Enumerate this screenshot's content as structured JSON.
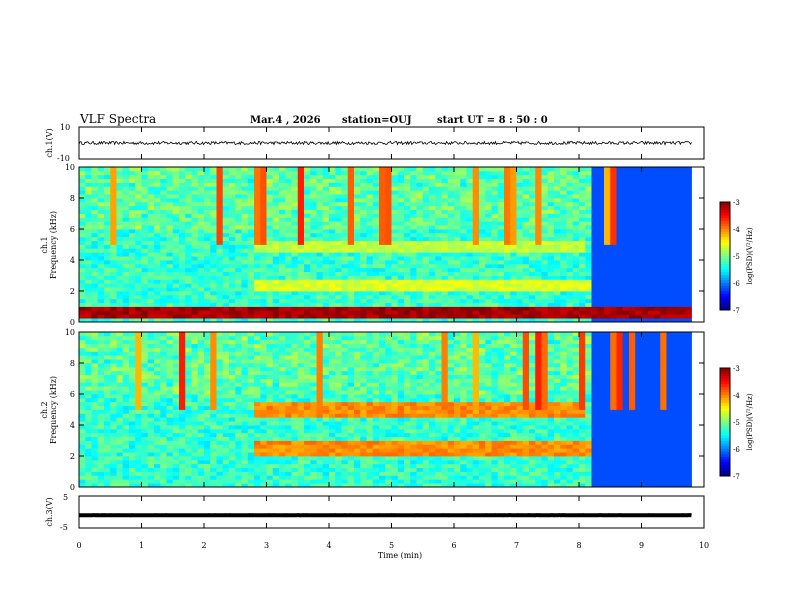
{
  "header": {
    "title": "VLF Spectra",
    "date": "Mar.4 , 2026",
    "station": "station=OUJ",
    "start": "start  UT =   8 : 50 : 0"
  },
  "x_axis": {
    "label": "Time  (min)",
    "ticks": [
      "0",
      "1",
      "2",
      "3",
      "4",
      "5",
      "6",
      "7",
      "8",
      "9",
      "10"
    ]
  },
  "colorbar": {
    "label": "log(PSD)(V²/Hz)",
    "ticks": [
      "-3",
      "-4",
      "-5",
      "-6",
      "-7"
    ]
  },
  "chart_data": [
    {
      "id": "ch1-voltage",
      "type": "line",
      "ylabel": "ch.1(V)",
      "ylim": [
        -10,
        10
      ],
      "yticks": [
        "10",
        "-10"
      ],
      "xlim": [
        0,
        10
      ],
      "description_values": {
        "mean": 0,
        "amplitude": 1
      }
    },
    {
      "id": "ch1-spectrogram",
      "type": "heatmap",
      "ylabel_1": "ch.1",
      "ylabel_2": "Frequency  (kHz)",
      "ylim": [
        0,
        10
      ],
      "yticks": [
        "0",
        "2",
        "4",
        "6",
        "8",
        "10"
      ],
      "xlim": [
        0,
        10
      ],
      "zlim": [
        -7,
        -3
      ],
      "data_end_min": 9.8,
      "bands": [
        {
          "f_lo": 4.7,
          "f_hi": 5.0,
          "t_start": 2.85,
          "t_end": 8.1,
          "level": -4.9
        },
        {
          "f_lo": 2.3,
          "f_hi": 2.6,
          "t_start": 2.85,
          "t_end": 8.15,
          "level": -4.8
        },
        {
          "f_lo": 0.45,
          "f_hi": 0.75,
          "t_start": 0,
          "t_end": 9.8,
          "level": -3.3
        }
      ],
      "quiet_after_min": 8.2
    },
    {
      "id": "ch2-spectrogram",
      "type": "heatmap",
      "ylabel_1": "ch.2",
      "ylabel_2": "Frequency  (kHz)",
      "ylim": [
        0,
        10
      ],
      "yticks": [
        "0",
        "2",
        "4",
        "6",
        "8",
        "10"
      ],
      "xlim": [
        0,
        10
      ],
      "zlim": [
        -7,
        -3
      ],
      "data_end_min": 9.8,
      "bands": [
        {
          "f_lo": 4.7,
          "f_hi": 5.4,
          "t_start": 2.85,
          "t_end": 8.1,
          "level": -4.2
        },
        {
          "f_lo": 2.2,
          "f_hi": 2.8,
          "t_start": 2.85,
          "t_end": 8.15,
          "level": -4.2
        }
      ],
      "quiet_after_min": 8.2
    },
    {
      "id": "ch3-voltage",
      "type": "line",
      "ylabel": "ch.3(V)",
      "ylim": [
        -5,
        5
      ],
      "yticks": [
        "5",
        "-5"
      ],
      "xlim": [
        0,
        10
      ],
      "description_values": {
        "mean": -1,
        "amplitude": 0.2
      }
    }
  ]
}
